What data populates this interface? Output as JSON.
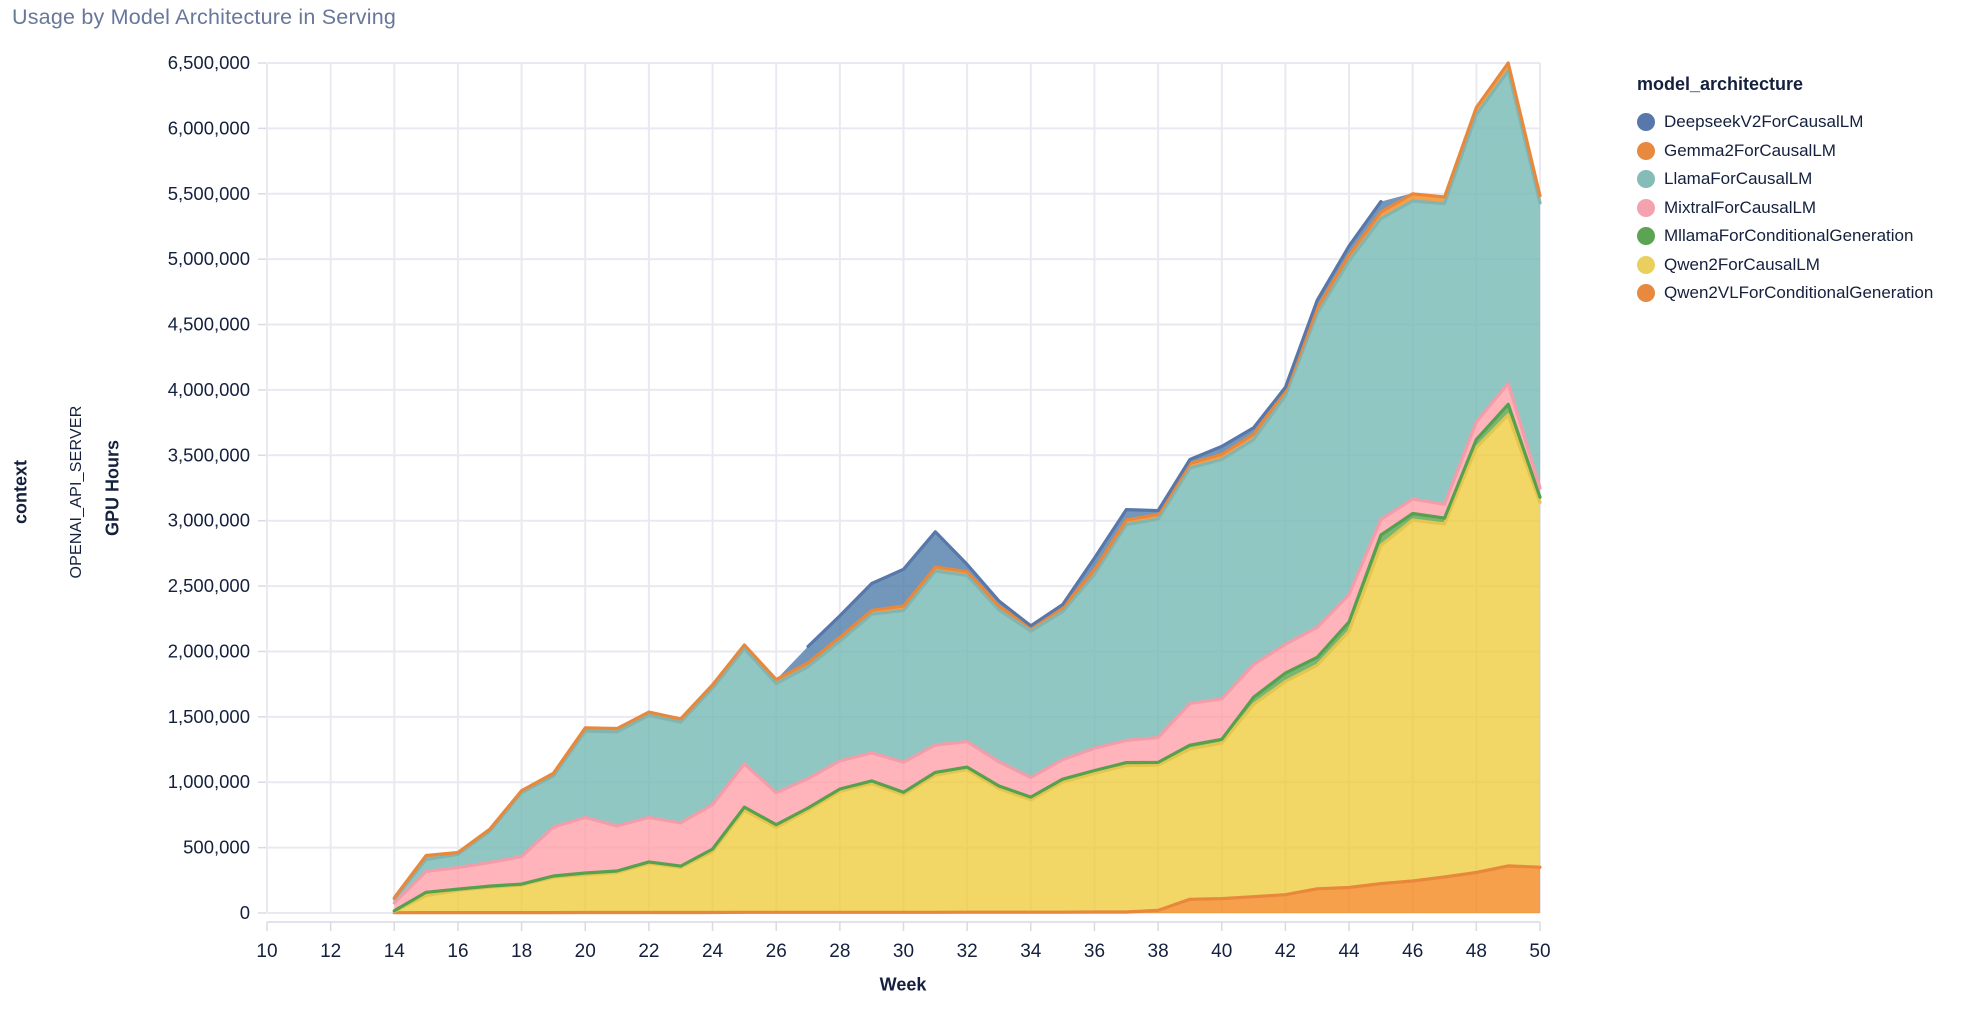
{
  "title": "Usage by Model Architecture in Serving",
  "facet": {
    "row_title": "context",
    "row_value": "OPENAI_API_SERVER"
  },
  "legend": {
    "title": "model_architecture",
    "items": [
      {
        "label": "DeepseekV2ForCausalLM",
        "color": "#5878ab"
      },
      {
        "label": "Gemma2ForCausalLM",
        "color": "#e78a3f"
      },
      {
        "label": "LlamaForCausalLM",
        "color": "#85bcb7"
      },
      {
        "label": "MixtralForCausalLM",
        "color": "#f4a3ae"
      },
      {
        "label": "MllamaForConditionalGeneration",
        "color": "#5ca353"
      },
      {
        "label": "Qwen2ForCausalLM",
        "color": "#e9cf5e"
      },
      {
        "label": "Qwen2VLForConditionalGeneration",
        "color": "#e78a3f"
      }
    ]
  },
  "chart_data": {
    "type": "area",
    "stacked": true,
    "title": "Usage by Model Architecture in Serving",
    "xlabel": "Week",
    "ylabel": "GPU Hours",
    "legend_title": "model_architecture",
    "grid": true,
    "x_domain": [
      10,
      50
    ],
    "y_domain": [
      0,
      6500000
    ],
    "x_ticks": [
      10,
      12,
      14,
      16,
      18,
      20,
      22,
      24,
      26,
      28,
      30,
      32,
      34,
      36,
      38,
      40,
      42,
      44,
      46,
      48,
      50
    ],
    "y_tick_values": [
      0,
      500000,
      1000000,
      1500000,
      2000000,
      2500000,
      3000000,
      3500000,
      4000000,
      4500000,
      5000000,
      5500000,
      6000000,
      6500000
    ],
    "y_tick_labels": [
      "0",
      "500,000",
      "1,000,000",
      "1,500,000",
      "2,000,000",
      "2,500,000",
      "3,000,000",
      "3,500,000",
      "4,000,000",
      "4,500,000",
      "5,000,000",
      "5,500,000",
      "6,000,000",
      "6,500,000"
    ],
    "x": [
      14,
      15,
      16,
      17,
      18,
      19,
      20,
      21,
      22,
      23,
      24,
      25,
      26,
      27,
      28,
      29,
      30,
      31,
      32,
      33,
      34,
      35,
      36,
      37,
      38,
      39,
      40,
      41,
      42,
      43,
      44,
      45,
      46,
      47,
      48,
      49,
      50
    ],
    "series": [
      {
        "name": "Qwen2VLForConditionalGeneration",
        "fill": "#f58518",
        "stroke": "#e8883c",
        "values": [
          2000,
          3000,
          3000,
          3000,
          3000,
          3000,
          4000,
          4000,
          4000,
          4000,
          4000,
          5000,
          5000,
          5000,
          5000,
          5000,
          5000,
          5000,
          6000,
          6000,
          6000,
          6000,
          8000,
          8000,
          20000,
          105000,
          110000,
          125000,
          140000,
          185000,
          195000,
          225000,
          245000,
          275000,
          310000,
          360000,
          350000
        ]
      },
      {
        "name": "Qwen2ForCausalLM",
        "fill": "#eeca3b",
        "stroke": "#e4c64f",
        "values": [
          10000,
          130000,
          170000,
          195000,
          210000,
          270000,
          290000,
          305000,
          375000,
          345000,
          465000,
          780000,
          650000,
          780000,
          925000,
          985000,
          900000,
          1050000,
          1090000,
          945000,
          860000,
          995000,
          1060000,
          1120000,
          1110000,
          1150000,
          1190000,
          1470000,
          1630000,
          1710000,
          1960000,
          2585000,
          2760000,
          2700000,
          3250000,
          3450000,
          2790000
        ]
      },
      {
        "name": "MllamaForConditionalGeneration",
        "fill": "#54a24b",
        "stroke": "#55a14e",
        "values": [
          5000,
          25000,
          10000,
          8000,
          8000,
          10000,
          12000,
          12000,
          12000,
          10000,
          20000,
          25000,
          20000,
          18000,
          18000,
          20000,
          18000,
          20000,
          20000,
          20000,
          20000,
          22000,
          22000,
          22000,
          22000,
          28000,
          28000,
          55000,
          65000,
          60000,
          70000,
          80000,
          50000,
          45000,
          60000,
          80000,
          40000
        ]
      },
      {
        "name": "MixtralForCausalLM",
        "fill": "#ff9da6",
        "stroke": "#f29daa",
        "values": [
          60000,
          160000,
          165000,
          180000,
          210000,
          375000,
          425000,
          345000,
          340000,
          330000,
          340000,
          330000,
          245000,
          225000,
          215000,
          215000,
          230000,
          210000,
          195000,
          185000,
          150000,
          150000,
          170000,
          170000,
          190000,
          320000,
          310000,
          250000,
          220000,
          230000,
          210000,
          120000,
          110000,
          105000,
          135000,
          160000,
          70000
        ]
      },
      {
        "name": "LlamaForCausalLM",
        "fill": "#72b7b2",
        "stroke": "#82b5b0",
        "values": [
          30000,
          92000,
          100000,
          240000,
          490000,
          390000,
          660000,
          720000,
          780000,
          770000,
          890000,
          880000,
          835000,
          855000,
          915000,
          1060000,
          1160000,
          1330000,
          1270000,
          1160000,
          1120000,
          1130000,
          1330000,
          1650000,
          1670000,
          1800000,
          1830000,
          1720000,
          1900000,
          2400000,
          2550000,
          2300000,
          2280000,
          2300000,
          2350000,
          2390000,
          2180000
        ]
      },
      {
        "name": "Gemma2ForCausalLM",
        "fill": "#f58518",
        "stroke": "#e8883c",
        "values": [
          10000,
          30000,
          15000,
          15000,
          15000,
          20000,
          25000,
          25000,
          25000,
          25000,
          25000,
          30000,
          30000,
          30000,
          30000,
          30000,
          35000,
          30000,
          30000,
          30000,
          30000,
          30000,
          35000,
          35000,
          35000,
          35000,
          40000,
          40000,
          40000,
          40000,
          45000,
          50000,
          55000,
          50000,
          55000,
          60000,
          55000
        ]
      },
      {
        "name": "DeepseekV2ForCausalLM",
        "fill": "#4c78a8",
        "stroke": "#5878ab",
        "stroke_week_range": [
          27,
          45
        ],
        "values": [
          0,
          0,
          0,
          0,
          0,
          0,
          0,
          0,
          0,
          0,
          0,
          0,
          0,
          125000,
          165000,
          205000,
          280000,
          270000,
          55000,
          40000,
          10000,
          25000,
          90000,
          80000,
          30000,
          30000,
          60000,
          50000,
          25000,
          60000,
          70000,
          80000,
          5000,
          0,
          0,
          0,
          0
        ]
      }
    ]
  },
  "style": {
    "grid_color": "#e9eaf1",
    "axis_color": "#d9dae3",
    "tick_label_color": "#14203d",
    "fill_opacity": 0.78
  }
}
